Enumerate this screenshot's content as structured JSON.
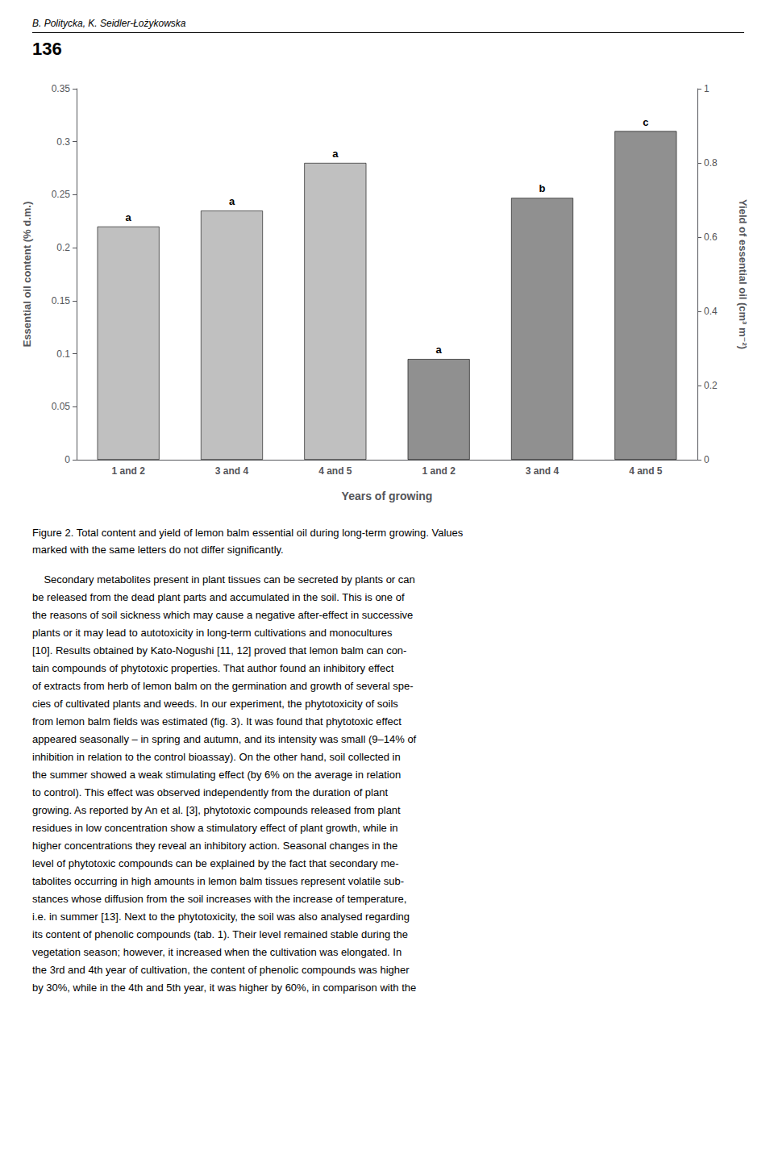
{
  "chart_data": {
    "type": "bar",
    "header": "B. Politycka, K. Seidler-Łożykowska",
    "page_number": "136",
    "categories": [
      "1 and 2",
      "3 and 4",
      "4 and 5",
      "1 and 2",
      "3 and 4",
      "4 and 5"
    ],
    "values": [
      0.22,
      0.235,
      0.28,
      0.095,
      0.247,
      0.31
    ],
    "colors": [
      "#c0c0c0",
      "#c0c0c0",
      "#c0c0c0",
      "#909090",
      "#909090",
      "#909090"
    ],
    "annotations": [
      "a",
      "a",
      "a",
      "a",
      "b",
      "c"
    ],
    "xlabel": "Years of growing",
    "ylabel": "Essential oil content (% d.m.)",
    "y2label": "Yield of essential oil (cm³ m⁻²)",
    "ylim": [
      0,
      0.35
    ],
    "yticks": [
      0,
      0.05,
      0.1,
      0.15,
      0.2,
      0.25,
      0.3,
      0.35
    ],
    "y2lim": [
      0,
      1
    ],
    "y2ticks": [
      0,
      0.2,
      0.4,
      0.6,
      0.8,
      1
    ],
    "grid": false,
    "caption": [
      "Figure 2. Total content and yield of lemon balm essential oil during long-term growing. Values",
      "marked with the same letters do not differ significantly."
    ],
    "body": [
      "    Secondary metabolites present in plant tissues can be secreted by plants or can",
      "be released from the dead plant parts and accumulated in the soil. This is one of",
      "the reasons of soil sickness which may cause a negative after-effect in successive",
      "plants or it may lead to autotoxicity in long-term cultivations and monocultures",
      "[10]. Results obtained by Kato-Nogushi [11, 12] proved that lemon balm can con-",
      "tain compounds of phytotoxic properties. That author found an inhibitory effect",
      "of extracts from herb of lemon balm on the germination and growth of several spe-",
      "cies of cultivated plants and weeds. In our experiment, the phytotoxicity of soils",
      "from lemon balm fields was estimated (fig. 3). It was found that phytotoxic effect",
      "appeared seasonally – in spring and autumn, and its intensity was small (9–14% of",
      "inhibition in relation to the control bioassay). On the other hand, soil collected in",
      "the summer showed a weak stimulating effect (by 6% on the average in relation",
      "to control). This effect was observed independently from the duration of plant",
      "growing. As reported by An et al. [3], phytotoxic compounds released from plant",
      "residues in low concentration show a stimulatory effect of plant growth, while in",
      "higher concentrations they reveal an inhibitory action. Seasonal changes in the",
      "level of phytotoxic compounds can be explained by the fact that secondary me-",
      "tabolites occurring in high amounts in lemon balm tissues represent volatile sub-",
      "stances whose diffusion from the soil increases with the increase of temperature,",
      "i.e. in summer [13]. Next to the phytotoxicity, the soil was also analysed regarding",
      "its content of phenolic compounds (tab. 1). Their level remained stable during the",
      "vegetation season; however, it increased when the cultivation was elongated. In",
      "the 3rd and 4th year of cultivation, the content of phenolic compounds was higher",
      "by 30%, while in the 4th and 5th year, it was higher by 60%, in comparison with the"
    ]
  }
}
